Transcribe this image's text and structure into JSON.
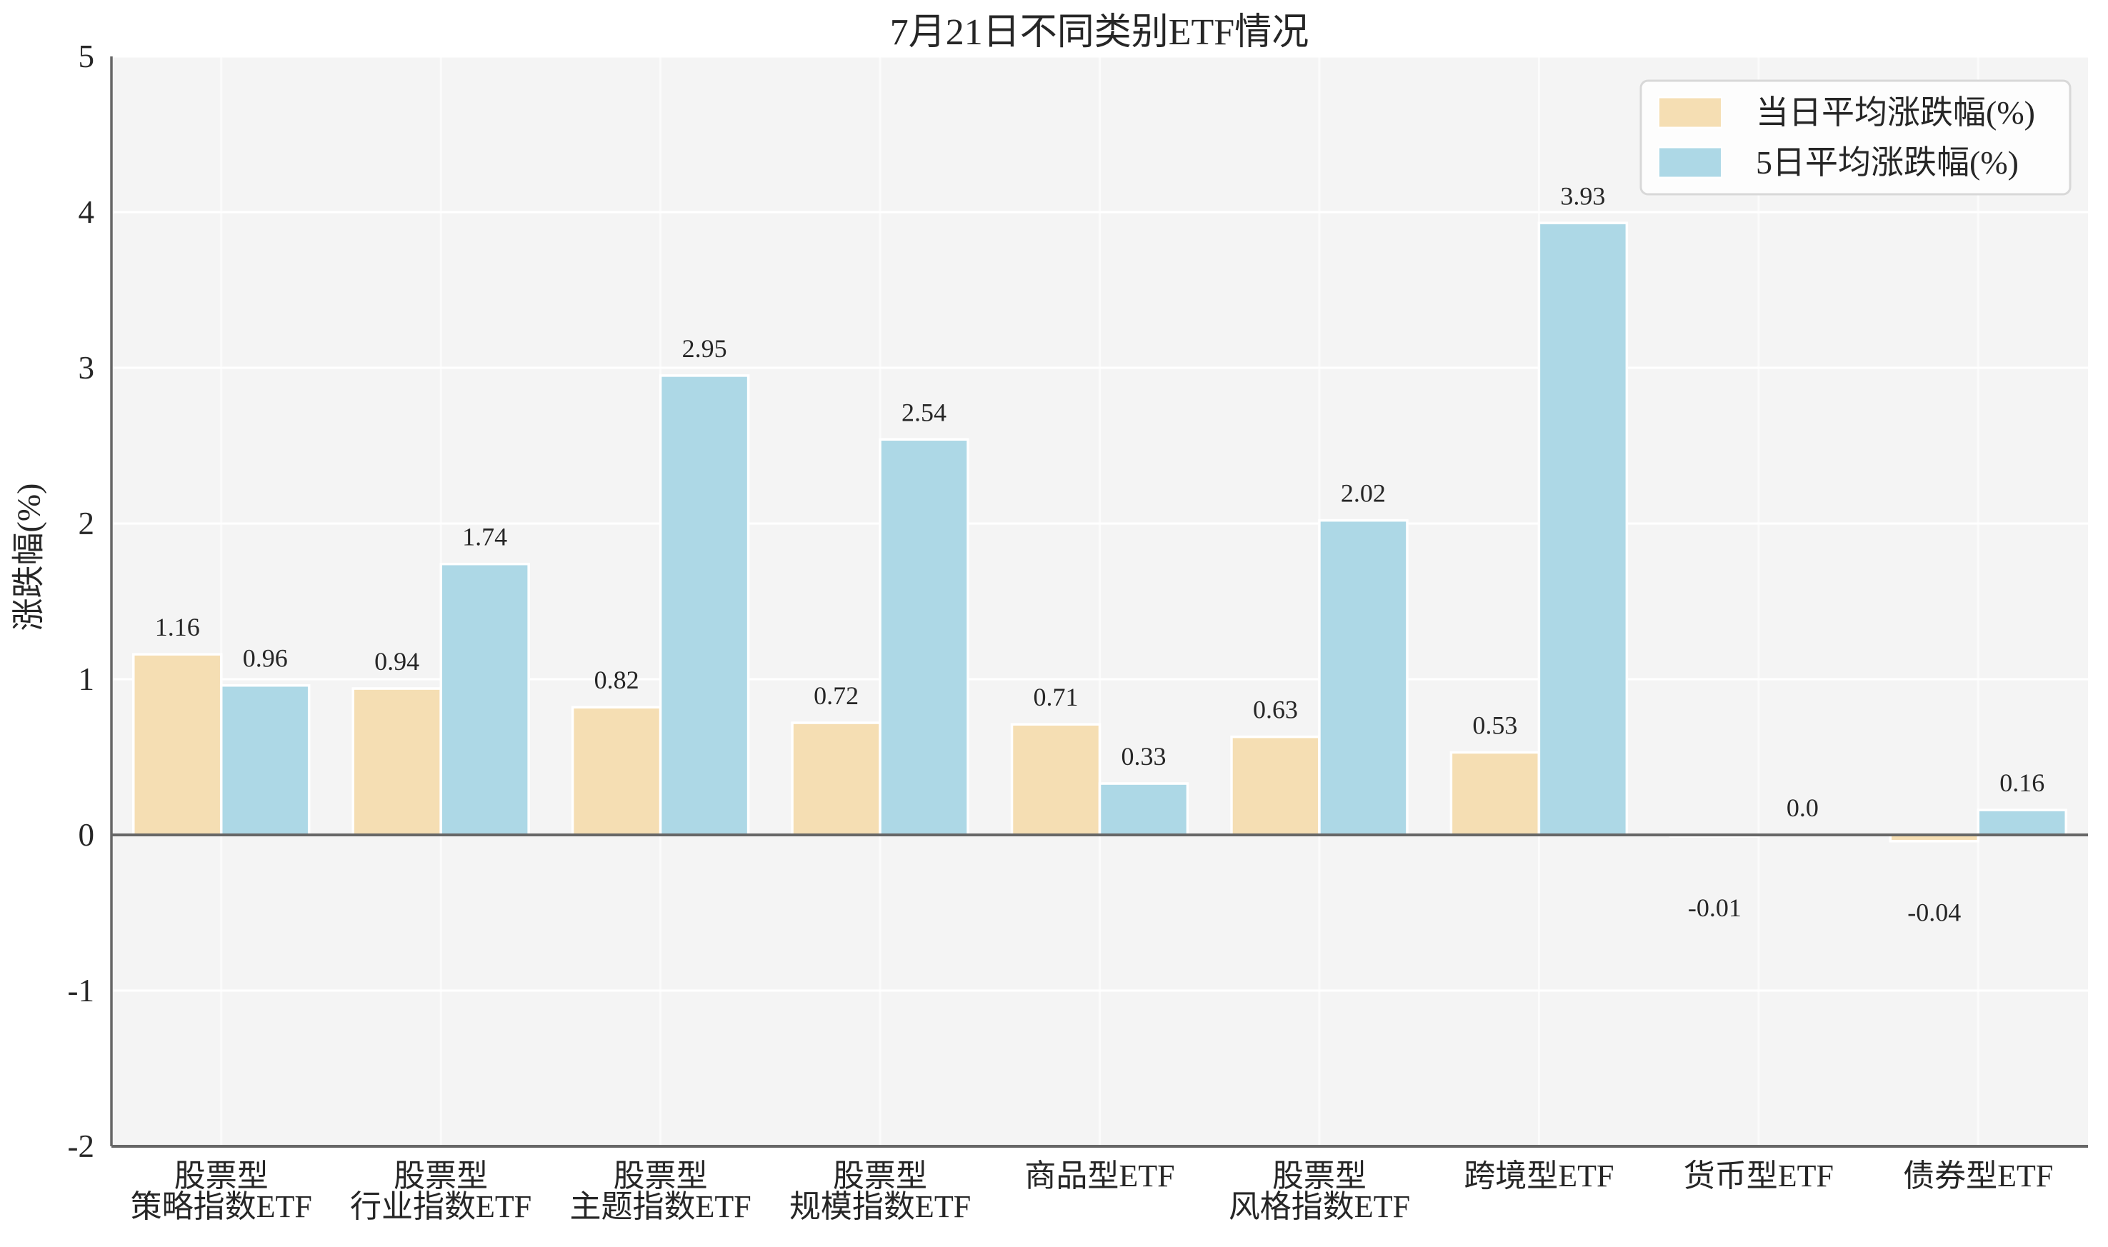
{
  "chart_data": {
    "type": "bar",
    "title": "7月21日不同类别ETF情况",
    "ylabel": "涨跌幅(%)",
    "xlabel": "",
    "ylim": [
      -2,
      5
    ],
    "yticks": [
      5,
      4,
      3,
      2,
      1,
      0,
      -1,
      -2
    ],
    "grid": "on",
    "legend_position": "upper right",
    "categories": [
      {
        "lines": [
          "股票型",
          "策略指数ETF"
        ]
      },
      {
        "lines": [
          "股票型",
          "行业指数ETF"
        ]
      },
      {
        "lines": [
          "股票型",
          "主题指数ETF"
        ]
      },
      {
        "lines": [
          "股票型",
          "规模指数ETF"
        ]
      },
      {
        "lines": [
          "商品型ETF"
        ]
      },
      {
        "lines": [
          "股票型",
          "风格指数ETF"
        ]
      },
      {
        "lines": [
          "跨境型ETF"
        ]
      },
      {
        "lines": [
          "货币型ETF"
        ]
      },
      {
        "lines": [
          "债券型ETF"
        ]
      }
    ],
    "series": [
      {
        "name": "当日平均涨跌幅(%)",
        "color": "#f5deb3",
        "values": [
          1.16,
          0.94,
          0.82,
          0.72,
          0.71,
          0.63,
          0.53,
          -0.01,
          -0.04
        ],
        "labels": [
          "1.16",
          "0.94",
          "0.82",
          "0.72",
          "0.71",
          "0.63",
          "0.53",
          "-0.01",
          "-0.04"
        ]
      },
      {
        "name": "5日平均涨跌幅(%)",
        "color": "#add8e6",
        "values": [
          0.96,
          1.74,
          2.95,
          2.54,
          0.33,
          2.02,
          3.93,
          0.0,
          0.16
        ],
        "labels": [
          "0.96",
          "1.74",
          "2.95",
          "2.54",
          "0.33",
          "2.02",
          "3.93",
          "0.0",
          "0.16"
        ]
      }
    ],
    "legend": {
      "entries": [
        "当日平均涨跌幅(%)",
        "5日平均涨跌幅(%)"
      ]
    },
    "colors": {
      "plot_background": "#f4f4f4",
      "figure_background": "#ffffff",
      "grid_horizontal": "#ffffff",
      "grid_vertical": "#ffffff",
      "spine": "#666666",
      "zero_line": "#666666",
      "bar_edge": "#ffffff",
      "text": "#262626",
      "legend_border": "#d8d8d8",
      "legend_fill": "#fdfdfd"
    }
  }
}
